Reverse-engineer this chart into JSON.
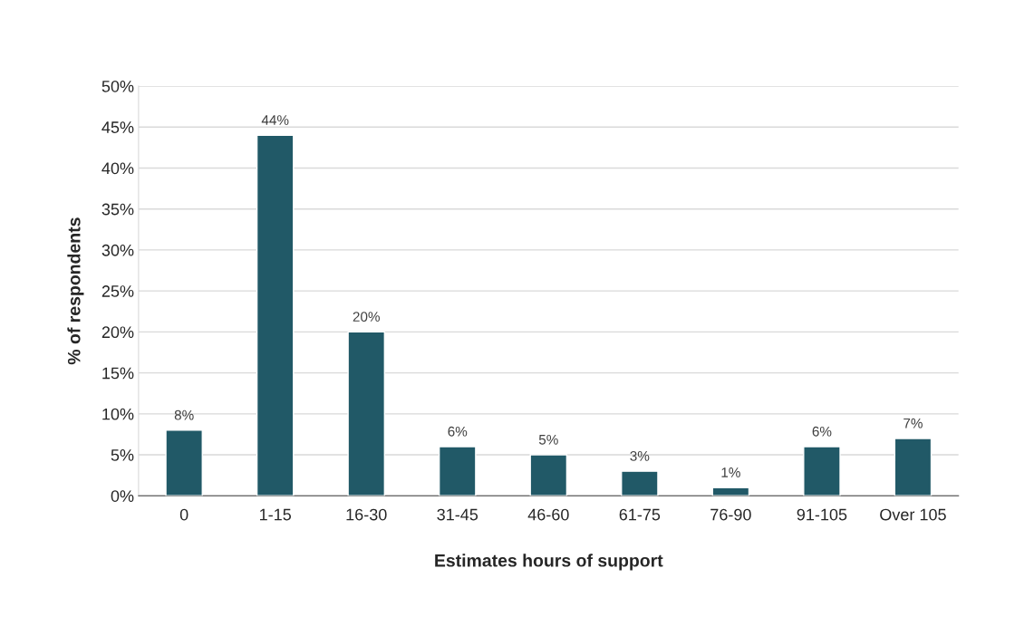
{
  "chart_data": {
    "type": "bar",
    "categories": [
      "0",
      "1-15",
      "16-30",
      "31-45",
      "46-60",
      "61-75",
      "76-90",
      "91-105",
      "Over 105"
    ],
    "values": [
      8,
      44,
      20,
      6,
      5,
      3,
      1,
      6,
      7
    ],
    "value_labels": [
      "8%",
      "44%",
      "20%",
      "6%",
      "5%",
      "3%",
      "1%",
      "6%",
      "7%"
    ],
    "color": "#215967",
    "xlabel": "Estimates hours of support",
    "ylabel": "% of respondents",
    "ylim": [
      0,
      50
    ],
    "yticks": [
      {
        "value": 0,
        "label": "0%"
      },
      {
        "value": 5,
        "label": "5%"
      },
      {
        "value": 10,
        "label": "10%"
      },
      {
        "value": 15,
        "label": "15%"
      },
      {
        "value": 20,
        "label": "20%"
      },
      {
        "value": 25,
        "label": "25%"
      },
      {
        "value": 30,
        "label": "30%"
      },
      {
        "value": 35,
        "label": "35%"
      },
      {
        "value": 40,
        "label": "40%"
      },
      {
        "value": 45,
        "label": "45%"
      },
      {
        "value": 50,
        "label": "50%"
      }
    ],
    "grid": "y"
  }
}
